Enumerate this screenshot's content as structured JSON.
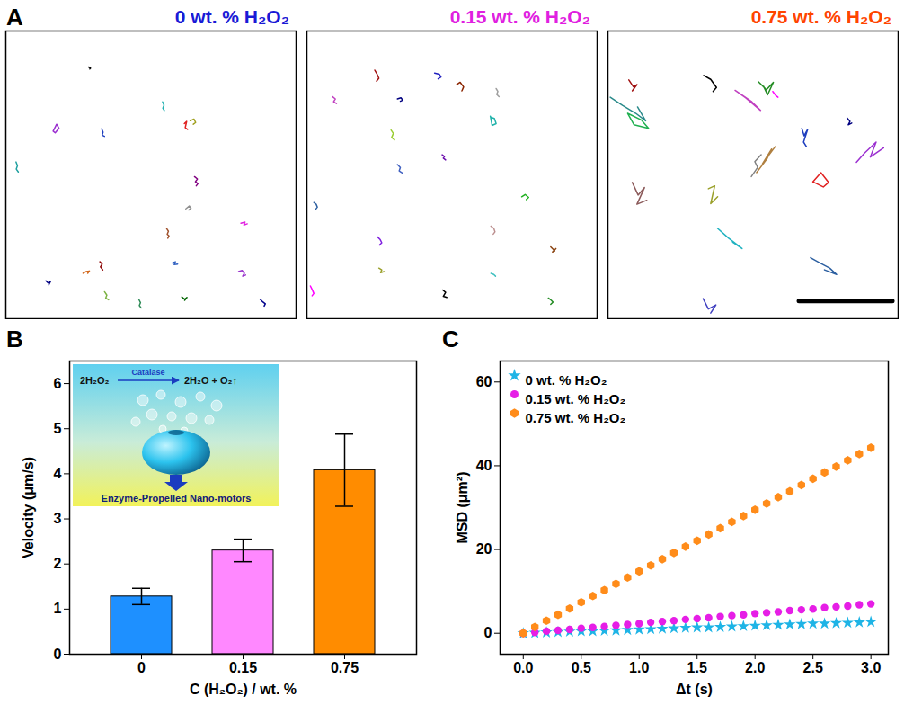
{
  "chart_data": [
    {
      "type": "trajectory",
      "panel": "A",
      "title": "0 wt. % H₂O₂",
      "color": "#1a1ad6",
      "xlim": [
        0,
        100
      ],
      "ylim": [
        100,
        0
      ],
      "tick_labels": false,
      "tracks": [
        {
          "color": "#000000",
          "x": [
            28.5,
            29.2,
            28.9
          ],
          "y": [
            12.5,
            12.9,
            13.2
          ]
        },
        {
          "color": "#9b30d0",
          "x": [
            16.3,
            17.5,
            18.3,
            17.0,
            16.3
          ],
          "y": [
            34.8,
            32.4,
            33.8,
            35.4,
            34.8
          ]
        },
        {
          "color": "#1f3fbf",
          "x": [
            33.0,
            33.5,
            33.2,
            34.0
          ],
          "y": [
            34.0,
            35.2,
            36.2,
            36.6
          ]
        },
        {
          "color": "#20b0b0",
          "x": [
            54.0,
            54.5,
            54.1,
            54.6
          ],
          "y": [
            24.6,
            25.8,
            26.8,
            27.6
          ]
        },
        {
          "color": "#e02020",
          "x": [
            61.5,
            62.3,
            61.8,
            62.6
          ],
          "y": [
            32.2,
            31.4,
            33.6,
            34.2
          ]
        },
        {
          "color": "#a0a020",
          "x": [
            63.5,
            64.8,
            65.4,
            64.6
          ],
          "y": [
            31.2,
            30.6,
            31.8,
            32.4
          ]
        },
        {
          "color": "#20a0a0",
          "x": [
            3.5,
            4.0,
            3.6,
            4.3
          ],
          "y": [
            45.5,
            46.8,
            48.0,
            49.0
          ]
        },
        {
          "color": "#800080",
          "x": [
            65.0,
            66.0,
            65.3,
            66.2,
            65.6
          ],
          "y": [
            50.6,
            51.4,
            52.4,
            53.0,
            53.8
          ]
        },
        {
          "color": "#909090",
          "x": [
            62.0,
            63.2,
            63.8,
            63.0
          ],
          "y": [
            61.8,
            60.8,
            61.6,
            62.2
          ]
        },
        {
          "color": "#a0522d",
          "x": [
            55.4,
            56.0,
            55.6,
            56.2,
            55.8
          ],
          "y": [
            68.6,
            69.6,
            70.6,
            71.2,
            72.0
          ]
        },
        {
          "color": "#e020e0",
          "x": [
            81.0,
            82.4,
            82.0,
            83.2
          ],
          "y": [
            66.8,
            66.4,
            67.4,
            67.0
          ]
        },
        {
          "color": "#3060c0",
          "x": [
            57.4,
            58.4,
            58.0,
            59.2
          ],
          "y": [
            80.6,
            80.2,
            81.2,
            81.0
          ]
        },
        {
          "color": "#8b0000",
          "x": [
            32.4,
            33.2,
            32.6,
            33.4
          ],
          "y": [
            80.2,
            81.0,
            82.0,
            83.0
          ]
        },
        {
          "color": "#d2691e",
          "x": [
            26.6,
            27.6,
            28.8,
            28.2
          ],
          "y": [
            84.2,
            83.6,
            83.4,
            84.2
          ]
        },
        {
          "color": "#000080",
          "x": [
            13.8,
            14.6,
            15.4,
            14.8
          ],
          "y": [
            86.8,
            87.6,
            87.0,
            88.2
          ]
        },
        {
          "color": "#9932cc",
          "x": [
            80.2,
            81.4,
            82.2,
            81.6,
            82.6
          ],
          "y": [
            83.6,
            83.2,
            84.2,
            85.2,
            84.8
          ]
        },
        {
          "color": "#7cb342",
          "x": [
            34.0,
            34.8,
            34.4,
            35.4
          ],
          "y": [
            90.6,
            91.8,
            92.8,
            93.4
          ]
        },
        {
          "color": "#2e8b57",
          "x": [
            45.8,
            46.4,
            46.0,
            46.6
          ],
          "y": [
            93.2,
            94.4,
            95.4,
            96.2
          ]
        },
        {
          "color": "#006400",
          "x": [
            60.6,
            61.6,
            62.4,
            61.6
          ],
          "y": [
            92.4,
            93.2,
            92.6,
            93.6
          ]
        },
        {
          "color": "#00008b",
          "x": [
            87.6,
            88.6,
            89.4,
            89.0
          ],
          "y": [
            93.2,
            94.2,
            94.8,
            95.6
          ]
        }
      ]
    },
    {
      "type": "trajectory",
      "title": "0.15 wt. % H₂O₂",
      "color": "#e020e0",
      "xlim": [
        0,
        100
      ],
      "ylim": [
        100,
        0
      ],
      "tick_labels": false,
      "tracks": [
        {
          "color": "#1f1fbf",
          "x": [
            44.0,
            45.6,
            46.2,
            45.2
          ],
          "y": [
            14.6,
            15.0,
            16.0,
            16.6
          ]
        },
        {
          "color": "#a01010",
          "x": [
            23.4,
            24.2,
            24.8,
            24.0
          ],
          "y": [
            13.6,
            15.0,
            16.4,
            17.4
          ]
        },
        {
          "color": "#8b2500",
          "x": [
            51.6,
            52.8,
            54.0,
            53.4
          ],
          "y": [
            18.6,
            17.8,
            19.4,
            20.8
          ]
        },
        {
          "color": "#a0a0a0",
          "x": [
            65.2,
            65.8,
            65.4,
            66.2
          ],
          "y": [
            20.0,
            21.0,
            22.0,
            22.8
          ]
        },
        {
          "color": "#c040c0",
          "x": [
            8.8,
            9.8,
            9.2,
            10.2
          ],
          "y": [
            22.8,
            23.6,
            24.6,
            25.2
          ]
        },
        {
          "color": "#000080",
          "x": [
            31.2,
            32.4,
            33.0,
            32.2
          ],
          "y": [
            23.6,
            23.2,
            24.0,
            24.4
          ]
        },
        {
          "color": "#20b2aa",
          "x": [
            63.2,
            63.8,
            65.2,
            64.6,
            63.4
          ],
          "y": [
            29.6,
            32.8,
            32.2,
            30.4,
            30.0
          ]
        },
        {
          "color": "#9acd32",
          "x": [
            29.0,
            29.8,
            29.2,
            30.2
          ],
          "y": [
            34.4,
            35.6,
            37.0,
            37.8
          ]
        },
        {
          "color": "#6a0dad",
          "x": [
            46.6,
            47.4,
            47.0,
            47.8
          ],
          "y": [
            43.0,
            43.6,
            44.2,
            44.8
          ]
        },
        {
          "color": "#4060c0",
          "x": [
            31.2,
            32.2,
            31.8,
            33.0
          ],
          "y": [
            46.4,
            47.4,
            48.6,
            49.4
          ]
        },
        {
          "color": "#2c5fa0",
          "x": [
            2.4,
            3.2,
            3.6,
            3.0
          ],
          "y": [
            59.6,
            60.2,
            61.2,
            62.0
          ]
        },
        {
          "color": "#20b020",
          "x": [
            74.0,
            75.2,
            76.4,
            75.6
          ],
          "y": [
            57.6,
            56.8,
            57.8,
            58.6
          ]
        },
        {
          "color": "#8020e0",
          "x": [
            24.4,
            25.2,
            25.8,
            25.0
          ],
          "y": [
            71.6,
            72.4,
            73.6,
            74.4
          ]
        },
        {
          "color": "#bc8f8f",
          "x": [
            63.4,
            64.4,
            64.8,
            64.2
          ],
          "y": [
            67.8,
            68.6,
            69.8,
            70.6
          ]
        },
        {
          "color": "#8b4513",
          "x": [
            84.0,
            85.4,
            84.6,
            85.8
          ],
          "y": [
            75.0,
            76.4,
            76.8,
            75.6
          ]
        },
        {
          "color": "#9aa02a",
          "x": [
            24.8,
            25.8,
            25.4,
            26.6
          ],
          "y": [
            82.4,
            83.0,
            84.0,
            83.6
          ]
        },
        {
          "color": "#40c0c0",
          "x": [
            63.4,
            64.4,
            65.0
          ],
          "y": [
            84.2,
            84.6,
            85.2
          ]
        },
        {
          "color": "#ff00ff",
          "x": [
            1.2,
            1.8,
            2.4,
            1.8
          ],
          "y": [
            88.6,
            89.8,
            91.2,
            92.0
          ]
        },
        {
          "color": "#000000",
          "x": [
            46.8,
            47.8,
            47.0,
            48.2
          ],
          "y": [
            90.0,
            90.8,
            92.2,
            92.6
          ]
        },
        {
          "color": "#228b22",
          "x": [
            83.2,
            84.2,
            84.8,
            84.0
          ],
          "y": [
            92.8,
            93.6,
            94.2,
            95.0
          ]
        }
      ]
    },
    {
      "type": "trajectory",
      "title": "0.75 wt. % H₂O₂",
      "color": "#ff4500",
      "xlim": [
        0,
        100
      ],
      "ylim": [
        100,
        0
      ],
      "tick_labels": false,
      "scale_bar": {
        "x": [
          65.8,
          98.0
        ],
        "y": 93.8
      },
      "tracks": [
        {
          "color": "#000000",
          "x": [
            33.0,
            35.4,
            37.4,
            36.2
          ],
          "y": [
            15.4,
            16.8,
            19.6,
            21.0
          ]
        },
        {
          "color": "#a01010",
          "x": [
            7.2,
            8.8,
            10.0,
            8.4
          ],
          "y": [
            17.0,
            19.4,
            18.6,
            20.8
          ]
        },
        {
          "color": "#c040c0",
          "x": [
            43.8,
            49.6,
            52.6,
            47.4,
            43.8
          ],
          "y": [
            20.6,
            24.6,
            27.6,
            23.2,
            20.6
          ]
        },
        {
          "color": "#228b22",
          "x": [
            51.8,
            54.6,
            57.0,
            55.0,
            53.6
          ],
          "y": [
            17.6,
            20.4,
            17.8,
            22.2,
            19.2
          ]
        },
        {
          "color": "#ff00ff",
          "x": [
            56.8,
            57.8,
            58.6
          ],
          "y": [
            21.0,
            22.4,
            23.0
          ]
        },
        {
          "color": "#2a8a8a",
          "x": [
            0.8,
            5.0,
            9.6,
            13.0,
            10.2
          ],
          "y": [
            23.0,
            25.8,
            28.6,
            31.2,
            26.4
          ]
        },
        {
          "color": "#20b050",
          "x": [
            6.8,
            11.6,
            14.0,
            9.0,
            6.8
          ],
          "y": [
            28.6,
            31.0,
            33.8,
            32.6,
            28.6
          ]
        },
        {
          "color": "#1f3fbf",
          "x": [
            66.8,
            67.6,
            68.8,
            67.4,
            68.4
          ],
          "y": [
            33.8,
            36.4,
            34.2,
            38.6,
            40.2
          ]
        },
        {
          "color": "#000080",
          "x": [
            82.4,
            83.4,
            82.8,
            84.0
          ],
          "y": [
            30.2,
            31.4,
            32.6,
            32.0
          ]
        },
        {
          "color": "#9b30d0",
          "x": [
            85.6,
            88.4,
            92.4,
            90.4,
            95.0
          ],
          "y": [
            45.6,
            42.4,
            38.6,
            43.8,
            40.6
          ]
        },
        {
          "color": "#b08040",
          "x": [
            51.2,
            54.8,
            56.4,
            53.2,
            57.6
          ],
          "y": [
            49.2,
            44.4,
            41.0,
            46.2,
            40.2
          ]
        },
        {
          "color": "#808080",
          "x": [
            49.4,
            51.6,
            50.6,
            52.8
          ],
          "y": [
            50.6,
            47.4,
            45.4,
            43.0
          ]
        },
        {
          "color": "#8b5a5a",
          "x": [
            8.4,
            10.4,
            12.6,
            10.0,
            13.4
          ],
          "y": [
            52.6,
            57.0,
            54.4,
            60.2,
            58.8
          ]
        },
        {
          "color": "#9aa02a",
          "x": [
            34.6,
            36.8,
            35.4,
            37.8
          ],
          "y": [
            54.8,
            53.8,
            60.0,
            57.6
          ]
        },
        {
          "color": "#e02020",
          "x": [
            70.6,
            73.4,
            76.0,
            74.2,
            70.6
          ],
          "y": [
            52.4,
            49.2,
            52.6,
            54.2,
            52.4
          ]
        },
        {
          "color": "#20b2c0",
          "x": [
            37.8,
            41.6,
            46.2,
            43.0
          ],
          "y": [
            68.6,
            72.0,
            75.6,
            73.4
          ]
        },
        {
          "color": "#2c5fa0",
          "x": [
            69.8,
            73.0,
            76.4,
            78.8,
            74.6
          ],
          "y": [
            78.8,
            80.6,
            82.4,
            84.6,
            83.0
          ]
        },
        {
          "color": "#4040c0",
          "x": [
            32.8,
            34.6,
            37.2,
            35.4
          ],
          "y": [
            93.0,
            96.6,
            95.2,
            98.0
          ]
        }
      ]
    },
    {
      "type": "bar",
      "panel": "B",
      "categories": [
        "0",
        "0.15",
        "0.75"
      ],
      "values": [
        1.28,
        2.3,
        4.08
      ],
      "errors": [
        0.18,
        0.25,
        0.8
      ],
      "colors": [
        "#1e90ff",
        "#ff88ff",
        "#ff8c00"
      ],
      "xlabel": "C (H₂O₂) / wt. %",
      "ylabel": "Velocity (μm/s)",
      "ylim": [
        0,
        6.5
      ],
      "yticks": [
        0,
        1,
        2,
        3,
        4,
        5,
        6
      ],
      "inset": {
        "equation_left": "2H₂O₂",
        "catalyst": "Catalase",
        "equation_right": "2H₂O + O₂↑",
        "caption": "Enzyme-Propelled Nano-motors"
      }
    },
    {
      "type": "scatter",
      "panel": "C",
      "x": [
        0,
        0.1,
        0.2,
        0.3,
        0.4,
        0.5,
        0.6,
        0.7,
        0.8,
        0.9,
        1.0,
        1.1,
        1.2,
        1.3,
        1.4,
        1.5,
        1.6,
        1.7,
        1.8,
        1.9,
        2.0,
        2.1,
        2.2,
        2.3,
        2.4,
        2.5,
        2.6,
        2.7,
        2.8,
        2.9,
        3.0
      ],
      "series": [
        {
          "name": "0 wt. % H₂O₂",
          "color": "#1eb4e6",
          "marker": "star",
          "values": [
            0,
            0.1,
            0.2,
            0.3,
            0.4,
            0.5,
            0.5,
            0.6,
            0.7,
            0.8,
            0.9,
            1.0,
            1.1,
            1.2,
            1.3,
            1.4,
            1.4,
            1.5,
            1.6,
            1.7,
            1.8,
            1.9,
            2.0,
            2.1,
            2.2,
            2.3,
            2.3,
            2.4,
            2.5,
            2.6,
            2.7
          ]
        },
        {
          "name": "0.15 wt. % H₂O₂",
          "color": "#e61ee6",
          "marker": "circle",
          "values": [
            0,
            0.2,
            0.5,
            0.7,
            0.9,
            1.2,
            1.4,
            1.6,
            1.9,
            2.1,
            2.3,
            2.6,
            2.8,
            3.0,
            3.3,
            3.5,
            3.7,
            4.0,
            4.2,
            4.4,
            4.7,
            4.9,
            5.1,
            5.4,
            5.6,
            5.8,
            6.1,
            6.3,
            6.5,
            6.8,
            7.0
          ]
        },
        {
          "name": "0.75 wt. % H₂O₂",
          "color": "#ff8c1a",
          "marker": "hexagon",
          "values": [
            0,
            1.5,
            3.0,
            4.4,
            5.9,
            7.4,
            8.9,
            10.3,
            11.8,
            13.3,
            14.8,
            16.2,
            17.7,
            19.2,
            20.7,
            22.1,
            23.6,
            25.1,
            26.6,
            28.0,
            29.5,
            31.0,
            32.5,
            33.9,
            35.4,
            36.9,
            38.4,
            39.8,
            41.3,
            42.8,
            44.3
          ]
        }
      ],
      "xlabel": "Δt (s)",
      "ylabel": "MSD (μm²)",
      "xlim": [
        -0.2,
        3.15
      ],
      "xticks": [
        {
          "value": 0,
          "label": "0.0"
        },
        {
          "value": 0.5,
          "label": "0.5"
        },
        {
          "value": 1,
          "label": "1.0"
        },
        {
          "value": 1.5,
          "label": "1.5"
        },
        {
          "value": 2,
          "label": "2.0"
        },
        {
          "value": 2.5,
          "label": "2.5"
        },
        {
          "value": 3,
          "label": "3.0"
        }
      ],
      "ylim": [
        -5,
        65
      ],
      "yticks": [
        0,
        20,
        40,
        60
      ],
      "legend": "top-left"
    }
  ]
}
